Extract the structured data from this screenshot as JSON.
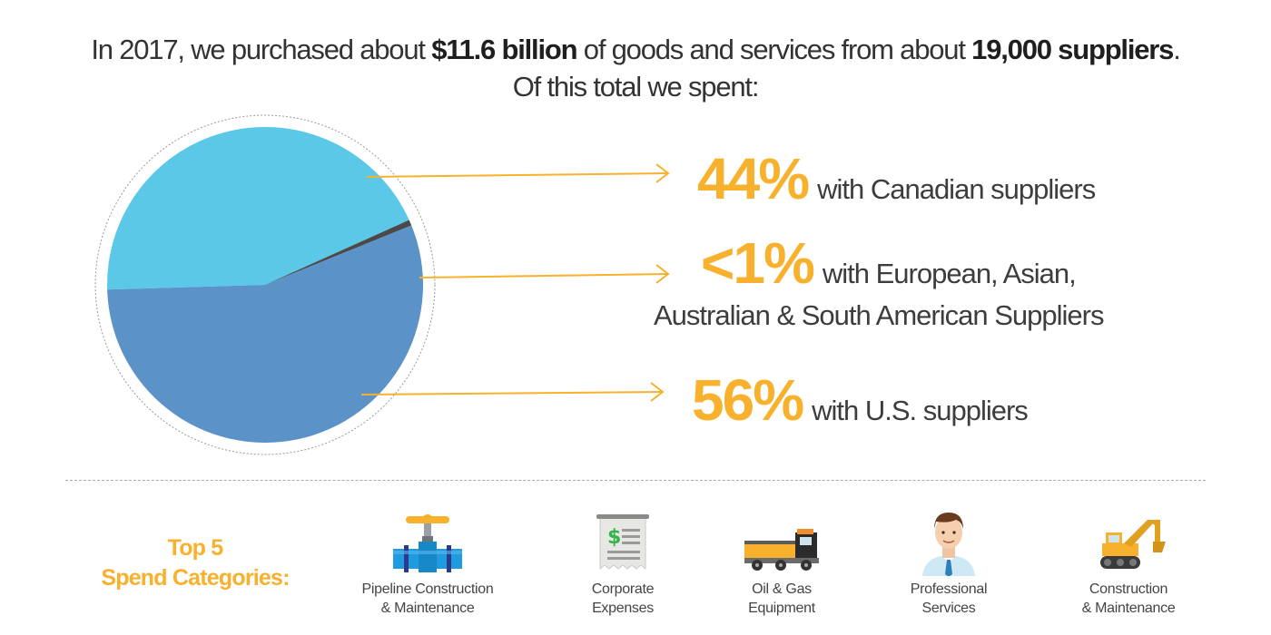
{
  "headline": {
    "p1": "In 2017, we purchased about ",
    "amount": "$11.6 billion",
    "p2": " of goods and services from about ",
    "suppliers": "19,000 suppliers",
    "p3": ".",
    "line2": "Of this total we spent:"
  },
  "chart_data": {
    "type": "pie",
    "slices": [
      {
        "label": "with Canadian suppliers",
        "value": 44,
        "display": "44%",
        "color": "#5bc8e8"
      },
      {
        "label": "with European, Asian, Australian & South American Suppliers",
        "value": 0.6,
        "display": "<1%",
        "color": "#4a4a4a"
      },
      {
        "label": "with U.S. suppliers",
        "value": 56,
        "display": "56%",
        "color": "#5b92c8"
      }
    ]
  },
  "callouts": {
    "canadian": {
      "pct": "44%",
      "text": "with Canadian suppliers"
    },
    "other": {
      "pct": "<1%",
      "text1": "with European, Asian,",
      "text2": "Australian & South American Suppliers"
    },
    "us": {
      "pct": "56%",
      "text": "with U.S. suppliers"
    }
  },
  "top5": {
    "line1": "Top 5",
    "line2": "Spend Categories:"
  },
  "categories": [
    {
      "icon": "pipeline-valve-icon",
      "line1": "Pipeline Construction",
      "line2": "& Maintenance"
    },
    {
      "icon": "receipt-icon",
      "line1": "Corporate",
      "line2": "Expenses"
    },
    {
      "icon": "truck-icon",
      "line1": "Oil & Gas",
      "line2": "Equipment"
    },
    {
      "icon": "businessman-icon",
      "line1": "Professional",
      "line2": "Services"
    },
    {
      "icon": "excavator-icon",
      "line1": "Construction",
      "line2": "& Maintenance"
    }
  ],
  "colors": {
    "accent": "#f7b12c",
    "arrow": "#f7b12c",
    "canadian": "#5bc8e8",
    "us": "#5b92c8",
    "other": "#4a4a4a"
  }
}
